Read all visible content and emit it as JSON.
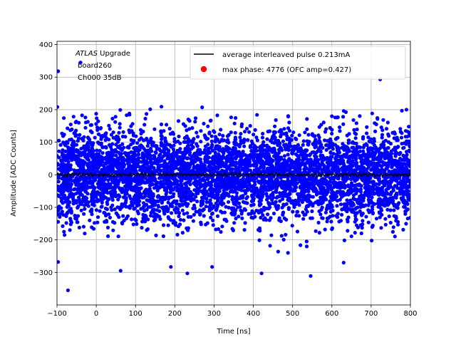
{
  "chart_data": {
    "type": "scatter",
    "title": "",
    "xlabel": "Time [ns]",
    "ylabel": "Amplitude [ADC Counts]",
    "xlim": [
      -100,
      800
    ],
    "ylim": [
      -400,
      410
    ],
    "x_ticks": [
      -100,
      0,
      100,
      200,
      300,
      400,
      500,
      600,
      700,
      800
    ],
    "y_ticks": [
      -300,
      -200,
      -100,
      0,
      100,
      200,
      300,
      400
    ],
    "grid": true,
    "legend_position": "top-right",
    "annotations": [
      {
        "italic": "ATLAS",
        "text": " Upgrade"
      },
      {
        "text": "board260"
      },
      {
        "text": "Ch000 35dB"
      }
    ],
    "series": [
      {
        "name": "average interleaved pulse 0.213mA",
        "kind": "line",
        "color": "#000000",
        "mean": 0,
        "amplitude": 7,
        "x_range": [
          -100,
          800
        ]
      },
      {
        "name": "max phase: 4776 (OFC amp=0.427)",
        "kind": "scatter",
        "color": "#0000ff",
        "legend_marker_color": "#ff0000",
        "mean": 0,
        "std": 70,
        "x_range": [
          -100,
          800
        ],
        "y_extent": [
          -355,
          345
        ],
        "highlighted_points": [
          {
            "x": -97,
            "y": 318
          },
          {
            "x": -97,
            "y": -268
          },
          {
            "x": -72,
            "y": -355
          },
          {
            "x": -40,
            "y": 345
          },
          {
            "x": 62,
            "y": -295
          },
          {
            "x": 190,
            "y": -283
          },
          {
            "x": 232,
            "y": -303
          },
          {
            "x": 295,
            "y": -283
          },
          {
            "x": 421,
            "y": -303
          },
          {
            "x": 546,
            "y": -311
          },
          {
            "x": 723,
            "y": 293
          },
          {
            "x": 630,
            "y": -270
          },
          {
            "x": 790,
            "y": 200
          }
        ]
      }
    ]
  }
}
